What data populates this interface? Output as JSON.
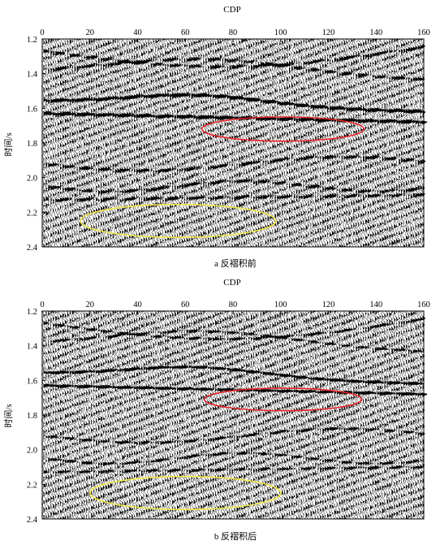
{
  "panels": [
    {
      "id": "a",
      "x_axis_title": "CDP",
      "y_axis_title": "时间/s",
      "caption": "a  反褶积前",
      "x_ticks": [
        "0",
        "20",
        "40",
        "60",
        "80",
        "100",
        "120",
        "140",
        "160"
      ],
      "y_ticks": [
        "1.2",
        "1.4",
        "1.6",
        "1.8",
        "2.0",
        "2.2",
        "2.4"
      ],
      "x_range": [
        0,
        160
      ],
      "y_range": [
        1.2,
        2.4
      ],
      "highlights": [
        {
          "color": "#e8242a",
          "cdp_center": 101,
          "time_center": 1.72,
          "cdp_radius": 34,
          "time_radius": 0.07
        },
        {
          "color": "#f2e94b",
          "cdp_center": 57,
          "time_center": 2.25,
          "cdp_radius": 41,
          "time_radius": 0.095
        }
      ]
    },
    {
      "id": "b",
      "x_axis_title": "CDP",
      "y_axis_title": "时间/s",
      "caption": "b  反褶积后",
      "x_ticks": [
        "0",
        "20",
        "40",
        "60",
        "80",
        "100",
        "120",
        "140",
        "160"
      ],
      "y_ticks": [
        "1.2",
        "1.4",
        "1.6",
        "1.8",
        "2.0",
        "2.2",
        "2.4"
      ],
      "x_range": [
        0,
        160
      ],
      "y_range": [
        1.2,
        2.4
      ],
      "highlights": [
        {
          "color": "#e8242a",
          "cdp_center": 101,
          "time_center": 1.71,
          "cdp_radius": 33,
          "time_radius": 0.065
        },
        {
          "color": "#f2e94b",
          "cdp_center": 60,
          "time_center": 2.25,
          "cdp_radius": 40,
          "time_radius": 0.095
        }
      ]
    }
  ]
}
